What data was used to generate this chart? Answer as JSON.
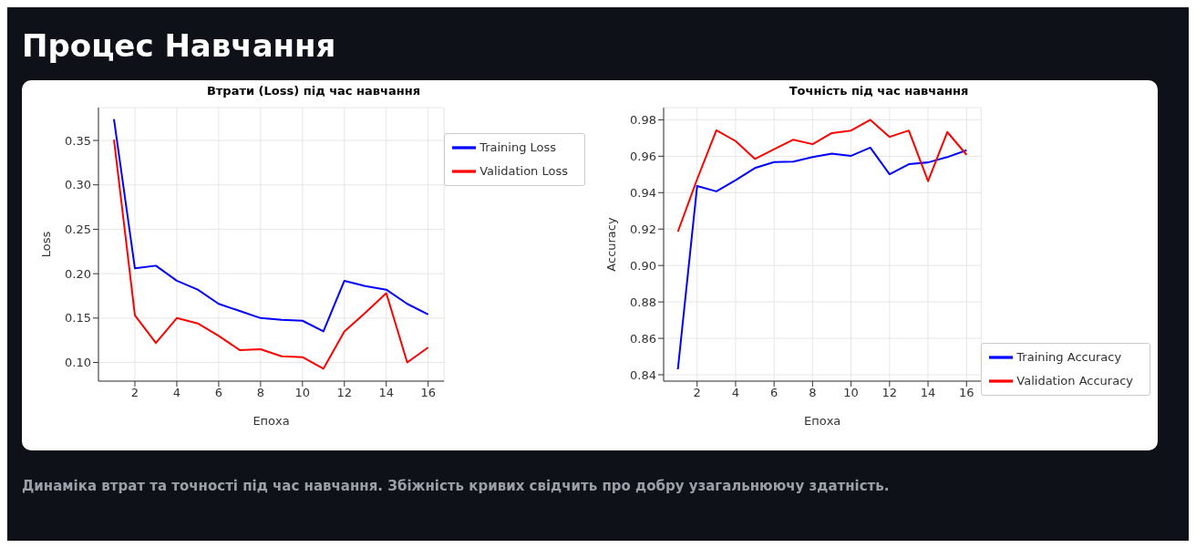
{
  "chart_data": [
    {
      "type": "other",
      "title": "Процес Навчання"
    },
    {
      "type": "line",
      "title": "Втрати (Loss) під час навчання",
      "xlabel": "Епоха",
      "ylabel": "Loss",
      "x": [
        1,
        2,
        3,
        4,
        5,
        6,
        7,
        8,
        9,
        10,
        11,
        12,
        13,
        14,
        15,
        16
      ],
      "xlim": [
        0.26,
        16.76
      ],
      "xticks": [
        2,
        4,
        6,
        8,
        10,
        12,
        14,
        16
      ],
      "ylim": [
        0.079,
        0.387
      ],
      "yticks": [
        {
          "value": 0.1,
          "label": "0.10"
        },
        0.15,
        {
          "value": 0.2,
          "label": "0.20"
        },
        0.25,
        {
          "value": 0.3,
          "label": "0.30"
        },
        0.35
      ],
      "grid": true,
      "legend": "top right",
      "marker": "none",
      "line_style": "solid",
      "series": [
        {
          "name": "Training Loss",
          "color": "#0000ff",
          "values": [
            0.374,
            0.206,
            0.209,
            0.192,
            0.182,
            0.166,
            0.158,
            0.15,
            0.148,
            0.147,
            0.135,
            0.192,
            0.186,
            0.182,
            0.166,
            0.154
          ]
        },
        {
          "name": "Validation Loss",
          "color": "#ff0000",
          "values": [
            0.351,
            0.153,
            0.122,
            0.15,
            0.144,
            0.13,
            0.114,
            0.115,
            0.107,
            0.106,
            0.093,
            0.135,
            0.156,
            0.178,
            0.1,
            0.117
          ]
        }
      ]
    },
    {
      "type": "line",
      "title": "Точність під час навчання",
      "xlabel": "Епоха",
      "ylabel": "Accuracy",
      "x": [
        1,
        2,
        3,
        4,
        5,
        6,
        7,
        8,
        9,
        10,
        11,
        12,
        13,
        14,
        15,
        16
      ],
      "xlim": [
        0.26,
        16.76
      ],
      "xticks": [
        2,
        4,
        6,
        8,
        10,
        12,
        14,
        16
      ],
      "ylim": [
        0.8365,
        0.9867
      ],
      "yticks": [
        0.84,
        0.86,
        0.88,
        {
          "value": 0.9,
          "label": "0.90"
        },
        0.92,
        0.94,
        0.96,
        0.98
      ],
      "grid": true,
      "legend": "bottom right",
      "marker": "none",
      "line_style": "solid",
      "series": [
        {
          "name": "Training Accuracy",
          "color": "#0000ff",
          "values": [
            0.843,
            0.9436,
            0.9407,
            0.9468,
            0.9535,
            0.9568,
            0.957,
            0.9595,
            0.9614,
            0.9602,
            0.9647,
            0.9501,
            0.9556,
            0.9566,
            0.9595,
            0.9633
          ]
        },
        {
          "name": "Validation Accuracy",
          "color": "#ff0000",
          "values": [
            0.9186,
            0.9474,
            0.9742,
            0.9683,
            0.9585,
            0.9639,
            0.9691,
            0.9666,
            0.9727,
            0.9741,
            0.98,
            0.9706,
            0.9741,
            0.9463,
            0.9733,
            0.9608
          ]
        }
      ]
    },
    {
      "type": "other",
      "annotations": [
        "Динаміка втрат та точності під час навчання. Збіжність кривих свідчить про добру узагальнюючу здатність."
      ]
    }
  ]
}
